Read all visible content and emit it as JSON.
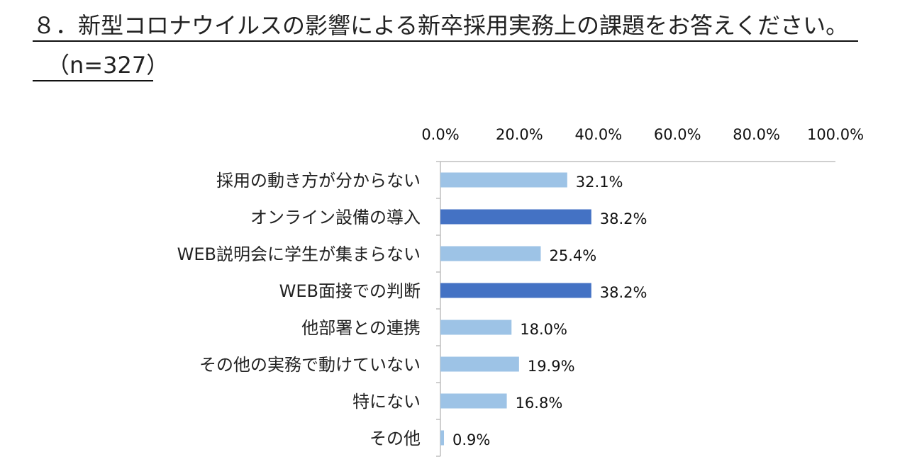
{
  "header": {
    "title": "８．新型コロナウイルスの影響による新卒採用実務上の課題をお答えください。",
    "sample": "（n=327）"
  },
  "chart_data": {
    "type": "bar",
    "orientation": "horizontal",
    "title": "８．新型コロナウイルスの影響による新卒採用実務上の課題をお答えください。",
    "subtitle": "（n=327）",
    "categories": [
      "採用の動き方が分からない",
      "オンライン設備の導入",
      "WEB説明会に学生が集まらない",
      "WEB面接での判断",
      "他部署との連携",
      "その他の実務で動けていない",
      "特にない",
      "その他"
    ],
    "values": [
      32.1,
      38.2,
      25.4,
      38.2,
      18.0,
      19.9,
      16.8,
      0.9
    ],
    "value_labels": [
      "32.1%",
      "38.2%",
      "25.4%",
      "38.2%",
      "18.0%",
      "19.9%",
      "16.8%",
      "0.9%"
    ],
    "highlighted": [
      false,
      true,
      false,
      true,
      false,
      false,
      false,
      false
    ],
    "xlim": [
      0,
      100
    ],
    "x_ticks": [
      "0.0%",
      "20.0%",
      "40.0%",
      "60.0%",
      "80.0%",
      "100.0%"
    ],
    "x_axis_position": "top",
    "grid": false,
    "legend": "none",
    "colors": {
      "normal": "#9DC3E6",
      "highlight": "#4472C4",
      "axis": "#BFBFBF"
    }
  }
}
